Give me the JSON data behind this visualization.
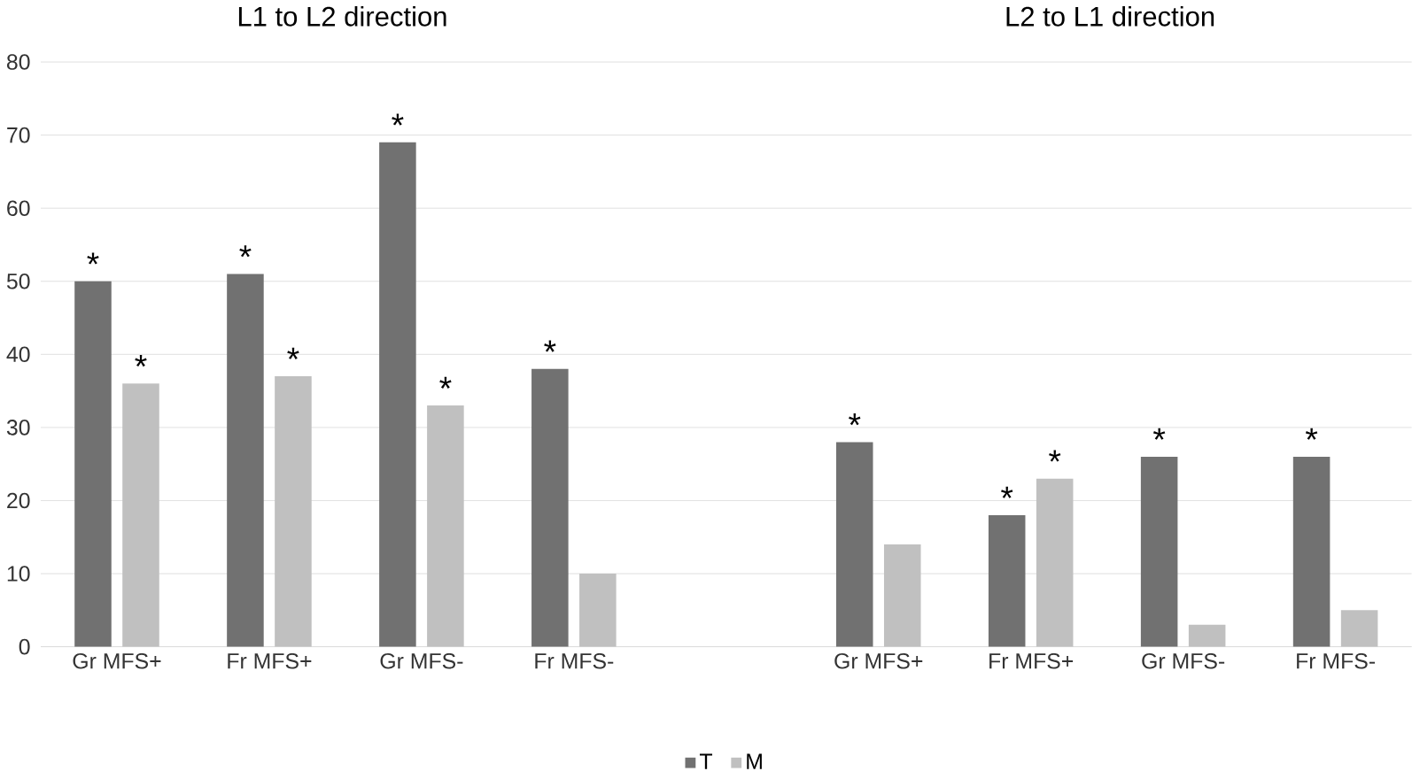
{
  "chart_data": {
    "type": "bar",
    "categories": [
      "Gr MFS+",
      "Fr MFS+",
      "Gr MFS-",
      "Fr MFS-",
      null,
      "Gr MFS+",
      "Fr MFS+",
      "Gr MFS-",
      "Fr MFS-"
    ],
    "series": [
      {
        "name": "T",
        "color": "#717171",
        "values": [
          50,
          51,
          69,
          38,
          null,
          28,
          18,
          26,
          26
        ],
        "value_labels": [
          "*",
          "*",
          "*",
          "*",
          null,
          "*",
          "*",
          "*",
          "*"
        ]
      },
      {
        "name": "M",
        "color": "#c0c0c0",
        "values": [
          36,
          37,
          33,
          10,
          null,
          14,
          23,
          3,
          5
        ],
        "value_labels": [
          "*",
          "*",
          "*",
          null,
          null,
          null,
          "*",
          null,
          null
        ]
      }
    ],
    "annotations": [
      "L1 to L2 direction",
      "L2 to L1 direction"
    ],
    "ylim": [
      0,
      80
    ],
    "yticks": [
      0,
      10,
      20,
      30,
      40,
      50,
      60,
      70,
      80
    ],
    "grid": "y",
    "legend": "bottom"
  }
}
